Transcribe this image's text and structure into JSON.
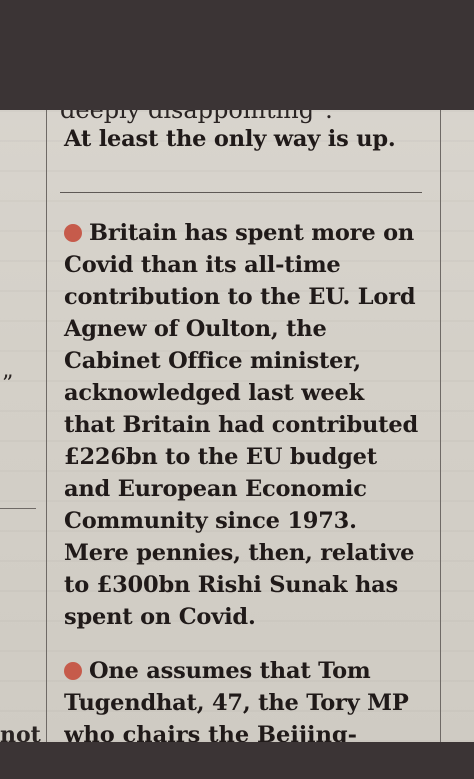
{
  "top_cut_text": "deeply disappointing\".",
  "lead_in_last_line": "At least the only way is up.",
  "item1": {
    "lines": [
      "Britain has spent more on",
      "Covid than its all-time",
      "contribution to the EU. Lord",
      "Agnew of Oulton, the",
      "Cabinet Office minister,",
      "acknowledged last week",
      "that Britain had contributed",
      "£226bn to the EU budget",
      "and European Economic",
      "Community since 1973.",
      "Mere pennies, then, relative",
      "to £300bn Rishi Sunak has",
      "spent on Covid."
    ]
  },
  "item2": {
    "lines": [
      "One assumes that Tom",
      "Tugendhat, 47, the Tory MP",
      "who chairs the Beijing-"
    ]
  },
  "left_column": {
    "quote_mark": "”",
    "cut_word": "not"
  },
  "colors": {
    "bullet": "#c65b4b",
    "paper": "#d5d1c9",
    "frame": "#3b3435"
  }
}
